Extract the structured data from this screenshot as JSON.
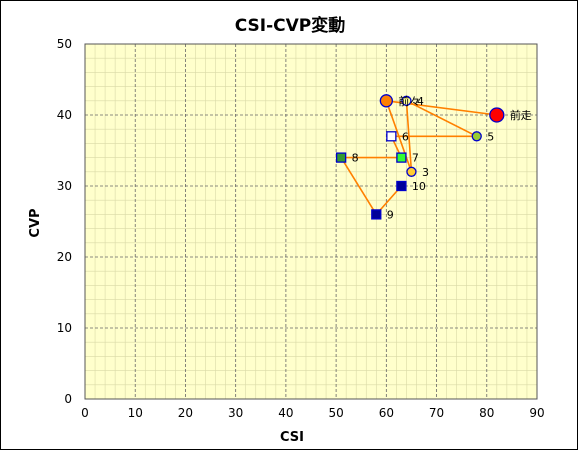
{
  "chart_data": {
    "type": "scatter",
    "title": "CSI-CVP変動",
    "xlabel": "CSI",
    "ylabel": "CVP",
    "xlim": [
      0,
      90
    ],
    "ylim": [
      0,
      50
    ],
    "x_ticks": [
      0,
      10,
      20,
      30,
      40,
      50,
      60,
      70,
      80,
      90
    ],
    "y_ticks": [
      0,
      10,
      20,
      30,
      40,
      50
    ],
    "minor_grid_x_step": 2,
    "minor_grid_y_step": 2,
    "grid": true,
    "plot_background": "#ffffcc",
    "line_color": "#ff8000",
    "points": [
      {
        "label": "前走",
        "x": 82,
        "y": 40,
        "marker": "circle",
        "size": "large",
        "fill": "#ff0000",
        "stroke": "#0000cc"
      },
      {
        "label": "前々",
        "x": 60,
        "y": 42,
        "marker": "circle",
        "size": "medium",
        "fill": "#ff8000",
        "stroke": "#0000cc"
      },
      {
        "label": "3",
        "x": 65,
        "y": 32,
        "marker": "circle",
        "size": "small",
        "fill": "#ffcc33",
        "stroke": "#0000cc"
      },
      {
        "label": "4",
        "x": 64,
        "y": 42,
        "marker": "circle",
        "size": "small",
        "fill": "#ffff99",
        "stroke": "#0000cc"
      },
      {
        "label": "5",
        "x": 78,
        "y": 37,
        "marker": "circle",
        "size": "small",
        "fill": "#99cc33",
        "stroke": "#0000cc"
      },
      {
        "label": "6",
        "x": 61,
        "y": 37,
        "marker": "square",
        "size": "small",
        "fill": "#ffffff",
        "stroke": "#0000cc"
      },
      {
        "label": "7",
        "x": 63,
        "y": 34,
        "marker": "square",
        "size": "small",
        "fill": "#33ff33",
        "stroke": "#0000cc"
      },
      {
        "label": "8",
        "x": 51,
        "y": 34,
        "marker": "square",
        "size": "small",
        "fill": "#339933",
        "stroke": "#0000cc"
      },
      {
        "label": "9",
        "x": 58,
        "y": 26,
        "marker": "square",
        "size": "small",
        "fill": "#000099",
        "stroke": "#0000cc"
      },
      {
        "label": "10",
        "x": 63,
        "y": 30,
        "marker": "square",
        "size": "small",
        "fill": "#000099",
        "stroke": "#0000cc"
      }
    ]
  }
}
